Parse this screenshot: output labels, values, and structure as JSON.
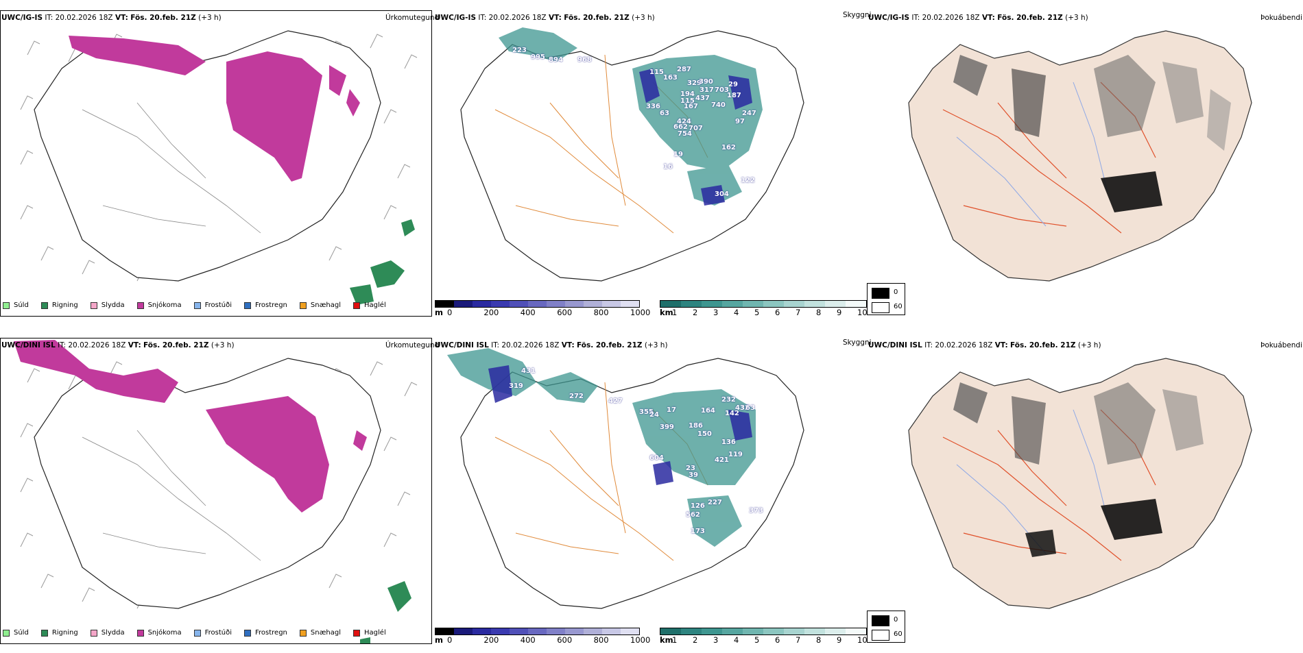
{
  "rows": [
    {
      "model": "UWC/IG-IS",
      "it_label": "IT:",
      "it_value": "20.02.2026 18Z",
      "vt_label": "VT:",
      "vt_value": "Fös. 20.feb. 21Z",
      "lead": "(+3 h)",
      "height_numbers": [
        "223",
        "995",
        "894",
        "968",
        "115",
        "163",
        "287",
        "329",
        "390",
        "317",
        "703",
        "187",
        "29",
        "194",
        "437",
        "740",
        "115",
        "167",
        "336",
        "63",
        "424",
        "707",
        "754",
        "662",
        "247",
        "97",
        "162",
        "304",
        "122",
        "16",
        "19"
      ]
    },
    {
      "model": "UWC/DINI ISL",
      "it_label": "IT:",
      "it_value": "20.02.2026 18Z",
      "vt_label": "VT:",
      "vt_value": "Fös. 20.feb. 21Z",
      "lead": "(+3 h)",
      "height_numbers": [
        "431",
        "319",
        "272",
        "427",
        "355",
        "24",
        "17",
        "164",
        "232",
        "142",
        "432",
        "63",
        "399",
        "186",
        "150",
        "136",
        "119",
        "604",
        "421",
        "39",
        "23",
        "126",
        "227",
        "562",
        "173",
        "373"
      ]
    }
  ],
  "panel_titles": {
    "precip": "Úrkomutegund",
    "cloud": "Skyggni",
    "fog": "Þokuábendi"
  },
  "precip_legend": [
    {
      "label": "Súld",
      "color": "#90ee90"
    },
    {
      "label": "Rigning",
      "color": "#2e8b57"
    },
    {
      "label": "Slydda",
      "color": "#f4a6c8"
    },
    {
      "label": "Snjókoma",
      "color": "#c13a9c"
    },
    {
      "label": "Frostúði",
      "color": "#87b5ec"
    },
    {
      "label": "Frostregn",
      "color": "#2f6fc0"
    },
    {
      "label": "Snæhagl",
      "color": "#f0a020"
    },
    {
      "label": "Haglél",
      "color": "#e01010"
    }
  ],
  "cloud_base_bar": {
    "unit": "m",
    "ticks": [
      "0",
      "200",
      "400",
      "600",
      "800",
      "1000"
    ],
    "colors": [
      "#000000",
      "#1a1a7a",
      "#2a2aa0",
      "#3a3ab0",
      "#5050b8",
      "#6868c0",
      "#8080c8",
      "#9898d0",
      "#b0b0d8",
      "#c8c8e6",
      "#e0e0f2"
    ]
  },
  "visibility_bar": {
    "unit": "km",
    "ticks": [
      "1",
      "2",
      "3",
      "4",
      "5",
      "6",
      "7",
      "8",
      "9",
      "10"
    ],
    "colors": [
      "#1f6f6a",
      "#2e8480",
      "#3e9690",
      "#56a6a0",
      "#70b6b0",
      "#8cc6c0",
      "#a8d4d0",
      "#c2e2de",
      "#dceeec",
      "#f4faf9"
    ]
  },
  "fog_legend": [
    {
      "label": "0",
      "color": "#000000"
    },
    {
      "label": "60",
      "color": "#ffffff"
    }
  ]
}
